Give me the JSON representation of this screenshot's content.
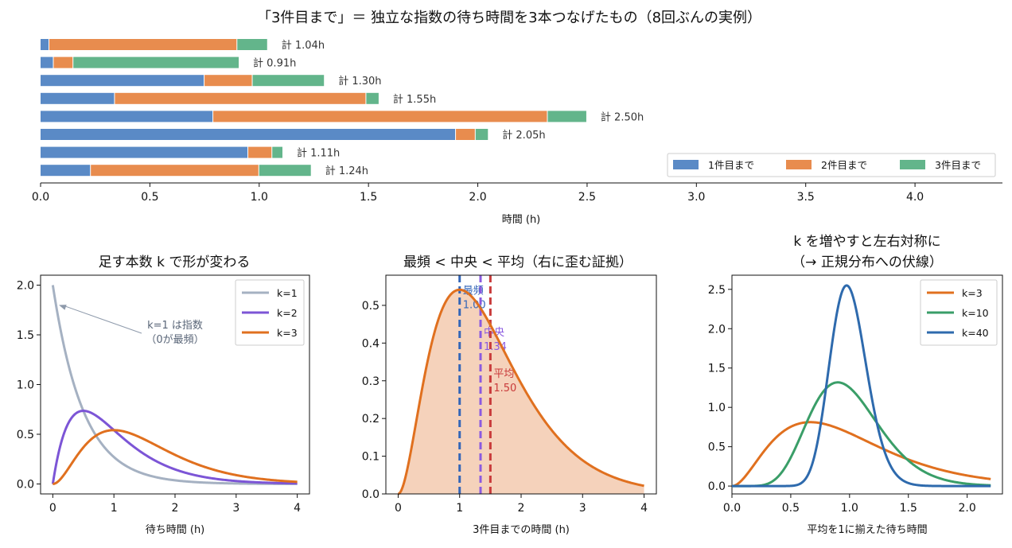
{
  "figure_title": "「3件目まで」＝ 独立な指数の待ち時間を3本つなげたもの（8回ぶんの実例）",
  "colors": {
    "first": "#5a8ac6",
    "second": "#e88c4e",
    "third": "#63b58b",
    "k1": "#a5b1c2",
    "k2": "#7c55d6",
    "k3": "#e0701f",
    "k10": "#3a9e68",
    "k40": "#2e6aad",
    "mode": "#3366b8",
    "median": "#8a5ae0",
    "mean": "#c93a3a",
    "fill": "#f5d2bb"
  },
  "chart_data": [
    {
      "type": "bar",
      "orientation": "horizontal-stacked",
      "title": "「3件目まで」＝ 独立な指数の待ち時間を3本つなげたもの（8回ぶんの実例）",
      "xlabel": "時間 (h)",
      "xlim": [
        0,
        4.4
      ],
      "xticks": [
        0.0,
        0.5,
        1.0,
        1.5,
        2.0,
        2.5,
        3.0,
        3.5,
        4.0
      ],
      "xtick_labels": [
        "0.0",
        "0.5",
        "1.0",
        "1.5",
        "2.0",
        "2.5",
        "3.0",
        "3.5",
        "4.0"
      ],
      "legend_position": "bottom-right",
      "legend": [
        "1件目まで",
        "2件目まで",
        "3件目まで"
      ],
      "rows": [
        {
          "segments": [
            0.04,
            0.86,
            0.14
          ],
          "label": "計 1.04h"
        },
        {
          "segments": [
            0.06,
            0.09,
            0.76
          ],
          "label": "計 0.91h"
        },
        {
          "segments": [
            0.75,
            0.22,
            0.33
          ],
          "label": "計 1.30h"
        },
        {
          "segments": [
            0.34,
            1.15,
            0.06
          ],
          "label": "計 1.55h"
        },
        {
          "segments": [
            0.79,
            1.53,
            0.18
          ],
          "label": "計 2.50h"
        },
        {
          "segments": [
            1.9,
            0.09,
            0.06
          ],
          "label": "計 2.05h"
        },
        {
          "segments": [
            0.95,
            0.11,
            0.05
          ],
          "label": "計 1.11h"
        },
        {
          "segments": [
            0.23,
            0.77,
            0.24
          ],
          "label": "計 1.24h"
        }
      ]
    },
    {
      "type": "line",
      "title": "足す本数 k で形が変わる",
      "xlabel": "待ち時間 (h)",
      "xlim": [
        -0.2,
        4.2
      ],
      "ylim": [
        -0.1,
        2.1
      ],
      "xticks": [
        0,
        1,
        2,
        3,
        4
      ],
      "xtick_labels": [
        "0",
        "1",
        "2",
        "3",
        "4"
      ],
      "yticks": [
        0.0,
        0.5,
        1.0,
        1.5,
        2.0
      ],
      "ytick_labels": [
        "0.0",
        "0.5",
        "1.0",
        "1.5",
        "2.0"
      ],
      "legend_position": "top-right",
      "series": [
        {
          "name": "k=1",
          "shape": 1,
          "rate": 2
        },
        {
          "name": "k=2",
          "shape": 2,
          "rate": 2
        },
        {
          "name": "k=3",
          "shape": 3,
          "rate": 2
        }
      ],
      "annotation": {
        "line1": "k=1 は指数",
        "line2": "（0が最頻）",
        "point": [
          0.1,
          1.8
        ],
        "text_at": [
          2.0,
          1.5
        ]
      }
    },
    {
      "type": "area",
      "title": "最頻 < 中央 < 平均（右に歪む証拠）",
      "xlabel": "3件目までの時間 (h)",
      "xlim": [
        -0.2,
        4.2
      ],
      "ylim": [
        0,
        0.58
      ],
      "xticks": [
        0,
        1,
        2,
        3,
        4
      ],
      "xtick_labels": [
        "0",
        "1",
        "2",
        "3",
        "4"
      ],
      "yticks": [
        0.0,
        0.1,
        0.2,
        0.3,
        0.4,
        0.5
      ],
      "ytick_labels": [
        "0.0",
        "0.1",
        "0.2",
        "0.3",
        "0.4",
        "0.5"
      ],
      "series": [
        {
          "shape": 3,
          "rate": 2
        }
      ],
      "markers": [
        {
          "label": "最頻",
          "value_label": "1.00",
          "x": 1.0,
          "text_y": 0.53
        },
        {
          "label": "中央",
          "value_label": "1.34",
          "x": 1.34,
          "text_y": 0.42
        },
        {
          "label": "平均",
          "value_label": "1.50",
          "x": 1.5,
          "text_y": 0.31
        }
      ]
    },
    {
      "type": "line",
      "title_line1": "k を増やすと左右対称に",
      "title_line2": "（→ 正規分布への伏線）",
      "xlabel": "平均を1に揃えた待ち時間",
      "xlim": [
        0.0,
        2.3
      ],
      "ylim": [
        -0.1,
        2.68
      ],
      "xticks": [
        0.0,
        0.5,
        1.0,
        1.5,
        2.0
      ],
      "xtick_labels": [
        "0.0",
        "0.5",
        "1.0",
        "1.5",
        "2.0"
      ],
      "yticks": [
        0.0,
        0.5,
        1.0,
        1.5,
        2.0,
        2.5
      ],
      "ytick_labels": [
        "0.0",
        "0.5",
        "1.0",
        "1.5",
        "2.0",
        "2.5"
      ],
      "legend_position": "top-right",
      "series": [
        {
          "name": "k=3",
          "shape": 3
        },
        {
          "name": "k=10",
          "shape": 10
        },
        {
          "name": "k=40",
          "shape": 40
        }
      ]
    }
  ]
}
